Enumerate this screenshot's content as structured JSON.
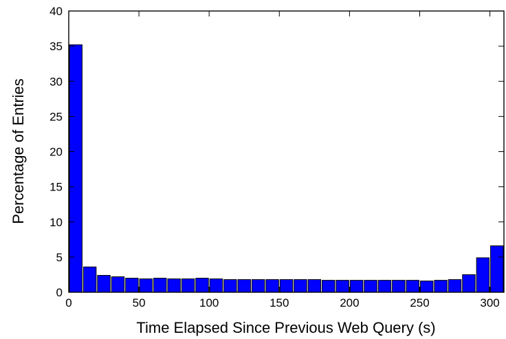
{
  "chart_data": {
    "type": "bar",
    "title": "",
    "xlabel": "Time Elapsed Since Previous Web Query (s)",
    "ylabel": "Percentage of Entries",
    "xlim": [
      0,
      310
    ],
    "ylim": [
      0,
      40
    ],
    "x_ticks": [
      0,
      50,
      100,
      150,
      200,
      250,
      300
    ],
    "y_ticks": [
      0,
      5,
      10,
      15,
      20,
      25,
      30,
      35,
      40
    ],
    "bin_width": 10,
    "x": [
      5,
      15,
      25,
      35,
      45,
      55,
      65,
      75,
      85,
      95,
      105,
      115,
      125,
      135,
      145,
      155,
      165,
      175,
      185,
      195,
      205,
      215,
      225,
      235,
      245,
      255,
      265,
      275,
      285,
      295,
      305
    ],
    "values": [
      35.2,
      3.6,
      2.4,
      2.2,
      2.0,
      1.9,
      2.0,
      1.9,
      1.9,
      2.0,
      1.9,
      1.8,
      1.8,
      1.8,
      1.8,
      1.8,
      1.8,
      1.8,
      1.7,
      1.7,
      1.7,
      1.7,
      1.7,
      1.7,
      1.7,
      1.6,
      1.7,
      1.8,
      2.5,
      4.9,
      6.6
    ],
    "bar_color": "#0000ff",
    "bar_edge_color": "#000000",
    "grid": false,
    "legend": "none"
  }
}
